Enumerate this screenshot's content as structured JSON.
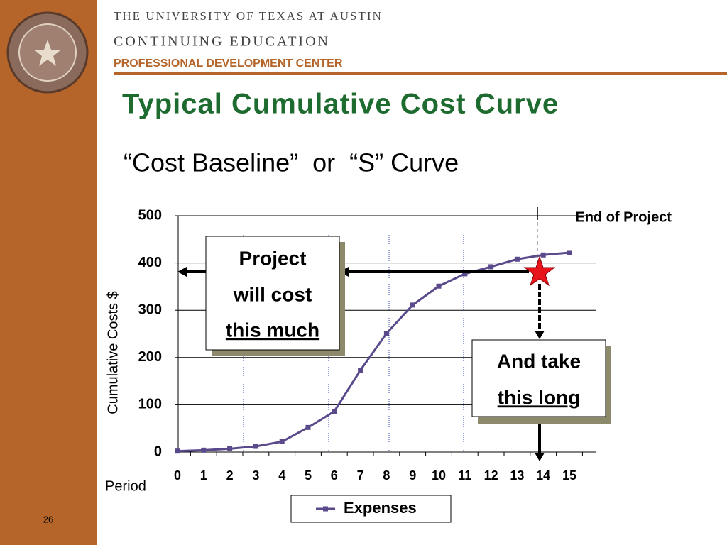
{
  "header": {
    "line1": "THE UNIVERSITY OF TEXAS AT AUSTIN",
    "line2": "CONTINUING EDUCATION",
    "line3": "PROFESSIONAL DEVELOPMENT CENTER"
  },
  "title": "Typical Cumulative Cost Curve",
  "subtitle": "“Cost Baseline”  or  “S” Curve",
  "page_number": "26",
  "chart_data": {
    "type": "line",
    "ylabel": "Cumulative Costs $",
    "xlabel": "Period",
    "categories": [
      "0",
      "1",
      "2",
      "3",
      "4",
      "5",
      "6",
      "7",
      "8",
      "9",
      "10",
      "11",
      "12",
      "13",
      "14",
      "15"
    ],
    "series": [
      {
        "name": "Expenses",
        "color": "#5b4a8b",
        "values": [
          2,
          4,
          7,
          12,
          22,
          52,
          86,
          173,
          251,
          311,
          351,
          377,
          392,
          408,
          417,
          422
        ]
      }
    ],
    "ylim": [
      0,
      500
    ],
    "yticks": [
      0,
      100,
      200,
      300,
      400,
      500
    ],
    "grid": true,
    "annotations": [
      "End of Project",
      "Project",
      "will cost",
      "this much",
      "And take",
      "this long"
    ]
  }
}
